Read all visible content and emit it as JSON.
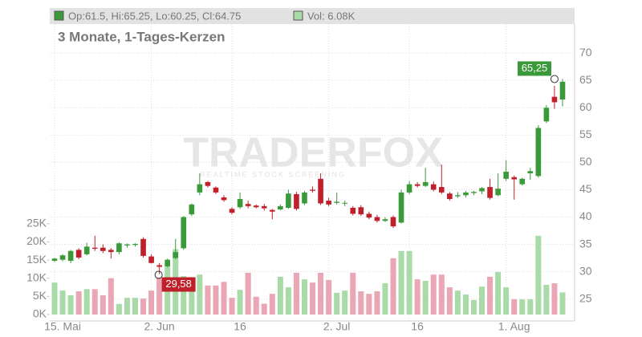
{
  "chart_data": {
    "type": "candlestick",
    "header_ohlc": "Op:61.5, Hi:65.25, Lo:60.25, Cl:64.75",
    "header_volume": "Vol: 6.08K",
    "subtitle": "3 Monate, 1-Tages-Kerzen",
    "watermark": "TRADERFOX",
    "watermark_tagline": "REALTIME STOCK SCREENING",
    "annotations": {
      "max_label": "65,25",
      "min_label": "29,58"
    },
    "up_color": "#3a9a3a",
    "down_color": "#c0202a",
    "volume_up_color": "#a9dba9",
    "volume_down_color": "#eaa6b4",
    "categories": [
      "15. Mai",
      null,
      null,
      null,
      null,
      null,
      null,
      null,
      null,
      null,
      null,
      null,
      "2. Jun",
      null,
      null,
      null,
      null,
      null,
      null,
      null,
      null,
      null,
      "16",
      null,
      null,
      null,
      null,
      null,
      null,
      null,
      null,
      null,
      null,
      null,
      "2. Jul",
      null,
      null,
      null,
      null,
      null,
      null,
      null,
      null,
      null,
      "16",
      null,
      null,
      null,
      null,
      null,
      null,
      null,
      null,
      null,
      null,
      null,
      "1. Aug",
      null,
      null,
      null,
      null,
      null,
      null,
      null
    ],
    "open": [
      32.0,
      32.2,
      32.0,
      34.0,
      33.2,
      34.4,
      34.4,
      34.0,
      33.6,
      34.8,
      34.9,
      36.0,
      32.8,
      31.2,
      31.0,
      32.5,
      34.3,
      40.5,
      44.5,
      46.4,
      45.4,
      43.6,
      41.5,
      41.8,
      42.4,
      42.1,
      42.0,
      41.3,
      41.4,
      41.7,
      44.2,
      42.5,
      45.0,
      47.0,
      43.0,
      42.6,
      42.5,
      41.7,
      41.8,
      40.6,
      40.0,
      39.3,
      40.0,
      39.0,
      44.5,
      46.0,
      45.7,
      46.0,
      45.5,
      44.3,
      43.8,
      44.0,
      44.4,
      44.7,
      45.5,
      44.0,
      47.0,
      47.3,
      46.0,
      48.0,
      47.5,
      57.5,
      62.0,
      61.5
    ],
    "high": [
      32.6,
      33.2,
      34.0,
      34.3,
      35.3,
      36.6,
      35.0,
      34.3,
      35.4,
      35.2,
      35.2,
      36.3,
      33.2,
      31.6,
      32.4,
      36.0,
      40.2,
      42.5,
      48.0,
      46.6,
      45.6,
      44.0,
      41.8,
      44.5,
      43.0,
      42.3,
      42.4,
      41.5,
      42.3,
      45.0,
      44.6,
      44.8,
      45.6,
      48.0,
      43.5,
      44.5,
      43.0,
      42.0,
      42.2,
      41.0,
      40.4,
      40.0,
      40.3,
      45.0,
      46.6,
      46.4,
      49.0,
      46.5,
      49.6,
      44.6,
      44.6,
      44.8,
      44.8,
      45.5,
      47.0,
      48.0,
      50.4,
      47.6,
      47.2,
      49.0,
      56.8,
      60.5,
      64.0,
      65.25
    ],
    "low": [
      31.8,
      31.9,
      31.6,
      32.3,
      33.0,
      33.8,
      33.4,
      32.4,
      33.2,
      34.4,
      34.6,
      32.6,
      31.5,
      29.58,
      30.8,
      32.3,
      34.0,
      40.2,
      44.0,
      45.4,
      44.2,
      42.8,
      40.5,
      41.5,
      41.6,
      41.6,
      41.2,
      39.6,
      41.2,
      41.5,
      41.2,
      42.2,
      44.5,
      42.2,
      42.0,
      42.3,
      42.0,
      40.3,
      40.2,
      39.6,
      39.0,
      39.1,
      38.0,
      38.8,
      44.2,
      45.4,
      45.5,
      44.7,
      44.2,
      43.0,
      43.5,
      43.6,
      44.0,
      44.2,
      43.2,
      43.8,
      46.6,
      43.2,
      45.8,
      46.8,
      47.2,
      57.2,
      59.8,
      60.25
    ],
    "close": [
      32.4,
      33.0,
      33.8,
      32.6,
      34.6,
      34.2,
      33.8,
      33.6,
      35.2,
      35.0,
      35.1,
      32.9,
      31.6,
      30.9,
      32.2,
      33.6,
      40.0,
      42.3,
      46.0,
      45.7,
      44.5,
      43.1,
      40.8,
      43.3,
      42.0,
      41.8,
      41.6,
      41.0,
      42.0,
      44.3,
      41.5,
      44.5,
      44.8,
      42.5,
      42.3,
      42.8,
      42.6,
      40.6,
      40.5,
      39.9,
      39.3,
      39.6,
      38.3,
      44.5,
      46.0,
      45.7,
      46.4,
      45.0,
      44.5,
      43.3,
      44.0,
      44.5,
      44.6,
      45.3,
      43.5,
      45.2,
      48.3,
      46.9,
      47.0,
      48.4,
      56.3,
      60.0,
      61.0,
      64.75
    ],
    "volume": [
      8.8,
      6.6,
      5.3,
      6.4,
      7.0,
      7.0,
      5.3,
      10.0,
      2.9,
      4.6,
      4.6,
      4.4,
      6.6,
      10.2,
      13.7,
      18.0,
      10.6,
      10.0,
      11.0,
      8.0,
      8.0,
      9.0,
      4.6,
      6.8,
      11.5,
      4.9,
      3.0,
      5.7,
      10.4,
      7.5,
      11.5,
      9.7,
      8.8,
      11.5,
      9.5,
      6.0,
      6.6,
      11.5,
      6.4,
      5.7,
      6.4,
      8.6,
      15.5,
      17.5,
      17.5,
      9.7,
      9.3,
      11.0,
      11.0,
      7.5,
      6.6,
      5.5,
      4.0,
      7.7,
      10.4,
      11.7,
      7.5,
      4.2,
      4.2,
      4.2,
      21.7,
      8.2,
      8.6,
      6.08
    ],
    "ylim": [
      21,
      75.3
    ],
    "yticks": [
      25,
      30,
      35,
      40,
      45,
      50,
      55,
      60,
      65,
      70
    ],
    "y2lim": [
      0,
      80
    ],
    "y2ticks": [
      {
        "value": 0,
        "label": "0K"
      },
      {
        "value": 5,
        "label": "5K"
      },
      {
        "value": 10,
        "label": "10K"
      },
      {
        "value": 15,
        "label": "15K"
      },
      {
        "value": 20,
        "label": "20K"
      },
      {
        "value": 25,
        "label": "25K"
      }
    ],
    "grid": true
  }
}
